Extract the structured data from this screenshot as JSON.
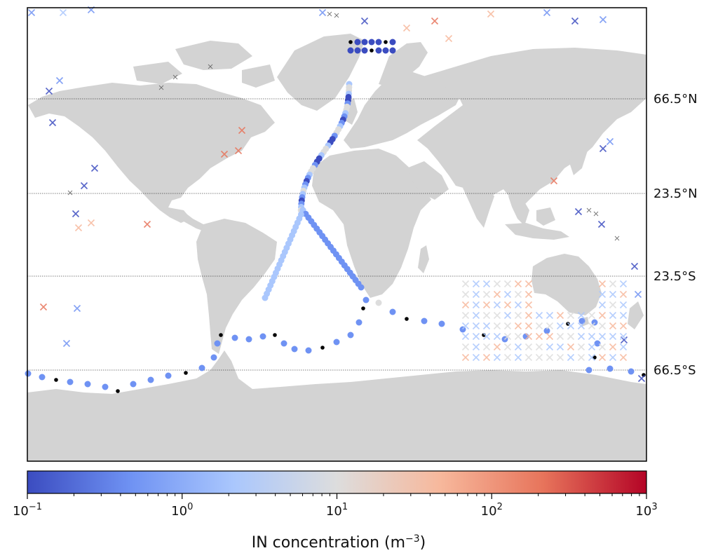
{
  "latitude_lines": [
    {
      "label": "66.5°N",
      "lat": 66.5
    },
    {
      "label": "23.5°N",
      "lat": 23.5
    },
    {
      "label": "23.5°S",
      "lat": -23.5
    },
    {
      "label": "66.5°S",
      "lat": -66.5
    }
  ],
  "colorbar": {
    "label": "IN concentration (m",
    "label_sup": "−3",
    "label_end": ")",
    "scale": "log",
    "range": [
      0.1,
      1000
    ],
    "ticks": [
      {
        "base": "10",
        "exp": "−1",
        "value": 0.1
      },
      {
        "base": "10",
        "exp": "0",
        "value": 1
      },
      {
        "base": "10",
        "exp": "1",
        "value": 10
      },
      {
        "base": "10",
        "exp": "2",
        "value": 100
      },
      {
        "base": "10",
        "exp": "3",
        "value": 1000
      }
    ],
    "colormap": "coolwarm",
    "colors": [
      "#3b4cc0",
      "#6f92f3",
      "#aac7fd",
      "#dddddd",
      "#f7b89c",
      "#e7745b",
      "#b40426"
    ]
  },
  "colors": {
    "land": "#d3d3d3",
    "ocean": "#ffffff",
    "missing_value_marker": "#000000"
  },
  "legend_markers": {
    "ship_track": "circle",
    "previous_observations": "x"
  }
}
